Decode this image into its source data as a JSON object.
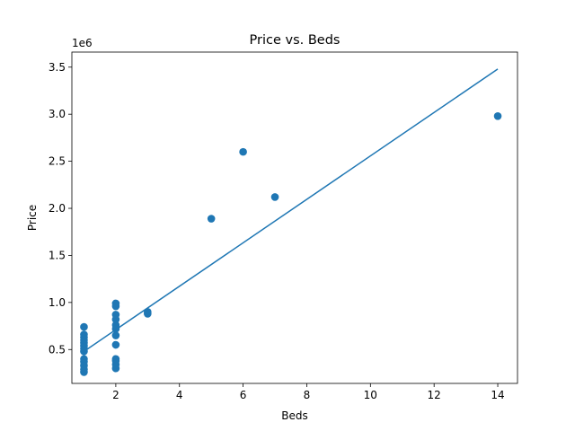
{
  "chart_data": {
    "type": "scatter",
    "title": "Price vs. Beds",
    "xlabel": "Beds",
    "ylabel": "Price",
    "y_offset_label": "1e6",
    "xlim": [
      0.62,
      14.62
    ],
    "ylim": [
      0.14,
      3.66
    ],
    "x_ticks": [
      2,
      4,
      6,
      8,
      10,
      12,
      14
    ],
    "x_tick_labels": [
      "2",
      "4",
      "6",
      "8",
      "10",
      "12",
      "14"
    ],
    "y_ticks": [
      0.5,
      1.0,
      1.5,
      2.0,
      2.5,
      3.0,
      3.5
    ],
    "y_tick_labels": [
      "0.5",
      "1.0",
      "1.5",
      "2.0",
      "2.5",
      "3.0",
      "3.5"
    ],
    "grid": false,
    "point_color": "#1f77b4",
    "line_color": "#1f77b4",
    "points": [
      {
        "x": 1,
        "y": 0.26
      },
      {
        "x": 1,
        "y": 0.29
      },
      {
        "x": 1,
        "y": 0.33
      },
      {
        "x": 1,
        "y": 0.37
      },
      {
        "x": 1,
        "y": 0.4
      },
      {
        "x": 1,
        "y": 0.48
      },
      {
        "x": 1,
        "y": 0.51
      },
      {
        "x": 1,
        "y": 0.54
      },
      {
        "x": 1,
        "y": 0.57
      },
      {
        "x": 1,
        "y": 0.6
      },
      {
        "x": 1,
        "y": 0.63
      },
      {
        "x": 1,
        "y": 0.66
      },
      {
        "x": 1,
        "y": 0.74
      },
      {
        "x": 2,
        "y": 0.3
      },
      {
        "x": 2,
        "y": 0.34
      },
      {
        "x": 2,
        "y": 0.38
      },
      {
        "x": 2,
        "y": 0.4
      },
      {
        "x": 2,
        "y": 0.55
      },
      {
        "x": 2,
        "y": 0.65
      },
      {
        "x": 2,
        "y": 0.72
      },
      {
        "x": 2,
        "y": 0.76
      },
      {
        "x": 2,
        "y": 0.82
      },
      {
        "x": 2,
        "y": 0.87
      },
      {
        "x": 2,
        "y": 0.96
      },
      {
        "x": 2,
        "y": 0.99
      },
      {
        "x": 3,
        "y": 0.88
      },
      {
        "x": 3,
        "y": 0.9
      },
      {
        "x": 5,
        "y": 1.89
      },
      {
        "x": 6,
        "y": 2.6
      },
      {
        "x": 7,
        "y": 2.12
      },
      {
        "x": 14,
        "y": 2.98
      }
    ],
    "fit_line": [
      {
        "x": 1,
        "y": 0.48
      },
      {
        "x": 14,
        "y": 3.48
      }
    ]
  }
}
